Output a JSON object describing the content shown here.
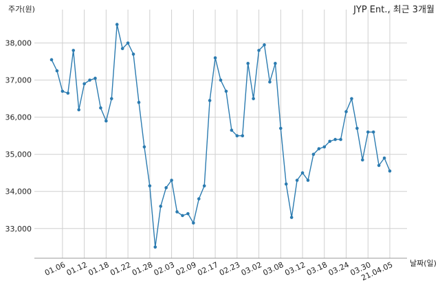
{
  "chart_data": {
    "type": "line",
    "title": "JYP Ent., 최근 3개월",
    "ylabel": "주가(원)",
    "xlabel": "날짜(일)",
    "ylim": [
      32200,
      38900
    ],
    "yticks": [
      33000,
      34000,
      35000,
      36000,
      37000,
      38000
    ],
    "ytick_labels": [
      "33,000",
      "34,000",
      "35,000",
      "36,000",
      "37,000",
      "38,000"
    ],
    "xtick_labels": [
      "01.06",
      "01.12",
      "01.18",
      "01.22",
      "01.28",
      "02.03",
      "02.09",
      "02.17",
      "02.23",
      "03.02",
      "03.08",
      "03.12",
      "03.18",
      "03.24",
      "03.30",
      "21.04.05"
    ],
    "xtick_positions": [
      2,
      6,
      10,
      14,
      18,
      22,
      26,
      30,
      34,
      38,
      42,
      46,
      50,
      54,
      58,
      62
    ],
    "grid": true,
    "line_color": "#2b7bb0",
    "series": [
      {
        "values": [
          37550,
          37250,
          36700,
          36650,
          37800,
          36200,
          36900,
          37000,
          37050,
          36250,
          35900,
          36500,
          38500,
          37850,
          38000,
          37700,
          36400,
          35200,
          34150,
          32500,
          33600,
          34100,
          34300,
          33450,
          33350,
          33400,
          33150,
          33800,
          34150,
          36450,
          37600,
          37000,
          36700,
          35650,
          35500,
          35500,
          37450,
          36500,
          37800,
          37950,
          36950,
          37450,
          35700,
          34200,
          33300,
          34300,
          34500,
          34300,
          35000,
          35150,
          35200,
          35350,
          35400,
          35400,
          36150,
          36500,
          35700,
          34850,
          35600,
          35600,
          34700,
          34900,
          34550
        ]
      }
    ]
  }
}
